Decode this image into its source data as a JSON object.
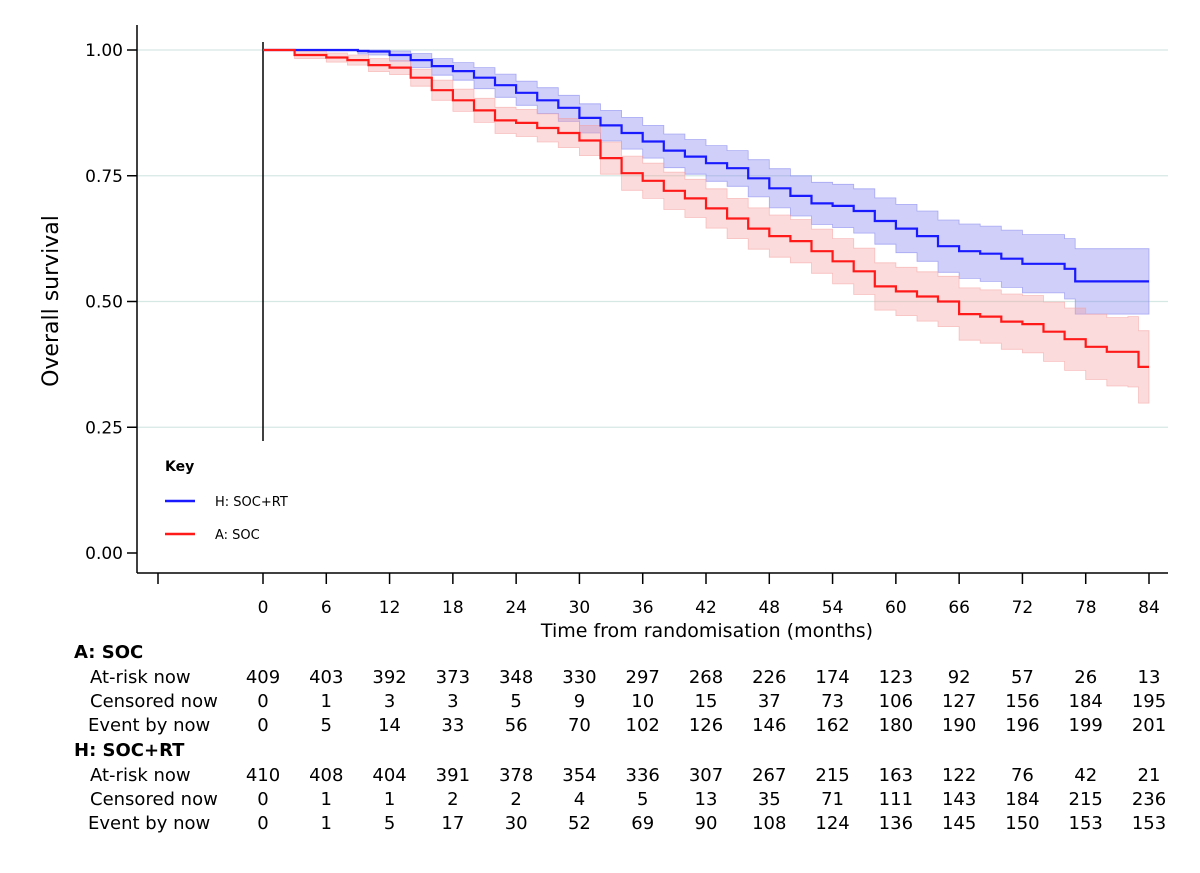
{
  "chart_data": {
    "type": "line",
    "ylabel": "Overall survival",
    "xlabel": "Time from randomisation (months)",
    "ylim": [
      0,
      1
    ],
    "xlim": [
      0,
      84
    ],
    "y_ticks": [
      "0.00",
      "0.25",
      "0.50",
      "0.75",
      "1.00"
    ],
    "y_tick_values": [
      0,
      0.25,
      0.5,
      0.75,
      1.0
    ],
    "x_ticks": [
      "0",
      "6",
      "12",
      "18",
      "24",
      "30",
      "36",
      "42",
      "48",
      "54",
      "60",
      "66",
      "72",
      "78",
      "84"
    ],
    "x_tick_values": [
      0,
      6,
      12,
      18,
      24,
      30,
      36,
      42,
      48,
      54,
      60,
      66,
      72,
      78,
      84
    ],
    "grid": "horizontal",
    "legend": {
      "title": "Key",
      "position": "bottom-left",
      "entries": [
        {
          "label": "H: SOC+RT",
          "color": "#1a1aff"
        },
        {
          "label": "A: SOC",
          "color": "#ff1a1a"
        }
      ]
    },
    "series": [
      {
        "name": "H: SOC+RT",
        "color": "#1a1aff",
        "band_color": "#8080ee",
        "x": [
          0,
          3,
          6,
          9,
          10,
          12,
          14,
          16,
          18,
          20,
          22,
          24,
          26,
          28,
          30,
          32,
          34,
          36,
          38,
          40,
          42,
          44,
          46,
          48,
          50,
          52,
          54,
          56,
          58,
          60,
          62,
          64,
          66,
          68,
          70,
          72,
          74,
          76,
          77,
          80,
          84
        ],
        "y": [
          1.0,
          1.0,
          1.0,
          0.998,
          0.997,
          0.99,
          0.98,
          0.968,
          0.958,
          0.945,
          0.93,
          0.915,
          0.9,
          0.885,
          0.865,
          0.85,
          0.835,
          0.818,
          0.8,
          0.788,
          0.775,
          0.765,
          0.745,
          0.725,
          0.71,
          0.695,
          0.69,
          0.68,
          0.66,
          0.645,
          0.63,
          0.61,
          0.6,
          0.595,
          0.585,
          0.575,
          0.575,
          0.565,
          0.54,
          0.54,
          0.54
        ],
        "upper": [
          1.0,
          1.0,
          1.0,
          1.0,
          1.0,
          0.998,
          0.993,
          0.983,
          0.975,
          0.965,
          0.952,
          0.938,
          0.925,
          0.91,
          0.893,
          0.88,
          0.866,
          0.85,
          0.833,
          0.822,
          0.81,
          0.8,
          0.782,
          0.764,
          0.75,
          0.737,
          0.733,
          0.724,
          0.706,
          0.693,
          0.68,
          0.662,
          0.654,
          0.65,
          0.642,
          0.633,
          0.633,
          0.625,
          0.605,
          0.605,
          0.605
        ],
        "lower": [
          1.0,
          1.0,
          0.998,
          0.992,
          0.99,
          0.978,
          0.965,
          0.95,
          0.94,
          0.923,
          0.906,
          0.89,
          0.874,
          0.858,
          0.835,
          0.819,
          0.803,
          0.785,
          0.766,
          0.753,
          0.739,
          0.729,
          0.708,
          0.686,
          0.67,
          0.653,
          0.647,
          0.636,
          0.614,
          0.597,
          0.58,
          0.558,
          0.546,
          0.54,
          0.528,
          0.517,
          0.517,
          0.505,
          0.475,
          0.475,
          0.475
        ]
      },
      {
        "name": "A: SOC",
        "color": "#ff1a1a",
        "band_color": "#f5a0a0",
        "x": [
          0,
          3,
          6,
          8,
          10,
          12,
          14,
          16,
          18,
          20,
          22,
          24,
          26,
          28,
          30,
          32,
          34,
          36,
          38,
          40,
          42,
          44,
          46,
          48,
          50,
          52,
          54,
          56,
          58,
          60,
          62,
          64,
          66,
          68,
          70,
          72,
          74,
          76,
          78,
          80,
          82,
          83,
          84
        ],
        "y": [
          1.0,
          0.99,
          0.985,
          0.98,
          0.97,
          0.965,
          0.945,
          0.92,
          0.9,
          0.88,
          0.86,
          0.855,
          0.845,
          0.835,
          0.82,
          0.785,
          0.755,
          0.74,
          0.72,
          0.705,
          0.685,
          0.665,
          0.645,
          0.63,
          0.62,
          0.6,
          0.58,
          0.56,
          0.53,
          0.52,
          0.51,
          0.5,
          0.475,
          0.47,
          0.46,
          0.455,
          0.44,
          0.425,
          0.41,
          0.4,
          0.4,
          0.37,
          0.37
        ],
        "upper": [
          1.0,
          0.997,
          0.994,
          0.99,
          0.983,
          0.979,
          0.962,
          0.94,
          0.922,
          0.904,
          0.886,
          0.882,
          0.873,
          0.864,
          0.85,
          0.817,
          0.789,
          0.775,
          0.757,
          0.743,
          0.724,
          0.705,
          0.686,
          0.672,
          0.663,
          0.644,
          0.625,
          0.606,
          0.577,
          0.568,
          0.559,
          0.55,
          0.527,
          0.523,
          0.515,
          0.512,
          0.499,
          0.487,
          0.475,
          0.468,
          0.47,
          0.442,
          0.442
        ],
        "lower": [
          1.0,
          0.983,
          0.976,
          0.97,
          0.957,
          0.951,
          0.928,
          0.9,
          0.878,
          0.856,
          0.834,
          0.828,
          0.817,
          0.806,
          0.79,
          0.753,
          0.721,
          0.705,
          0.683,
          0.667,
          0.646,
          0.625,
          0.604,
          0.588,
          0.577,
          0.556,
          0.535,
          0.514,
          0.483,
          0.472,
          0.461,
          0.45,
          0.423,
          0.417,
          0.405,
          0.398,
          0.381,
          0.363,
          0.345,
          0.332,
          0.33,
          0.298,
          0.298
        ]
      }
    ]
  },
  "risk_table": {
    "time_points": [
      "0",
      "6",
      "12",
      "18",
      "24",
      "30",
      "36",
      "42",
      "48",
      "54",
      "60",
      "66",
      "72",
      "78",
      "84"
    ],
    "groups": [
      {
        "title": "A: SOC",
        "rows": [
          {
            "label": "At-risk now",
            "values": [
              "409",
              "403",
              "392",
              "373",
              "348",
              "330",
              "297",
              "268",
              "226",
              "174",
              "123",
              "92",
              "57",
              "26",
              "13"
            ]
          },
          {
            "label": "Censored now",
            "values": [
              "0",
              "1",
              "3",
              "3",
              "5",
              "9",
              "10",
              "15",
              "37",
              "73",
              "106",
              "127",
              "156",
              "184",
              "195"
            ]
          },
          {
            "label": "Event by now",
            "values": [
              "0",
              "5",
              "14",
              "33",
              "56",
              "70",
              "102",
              "126",
              "146",
              "162",
              "180",
              "190",
              "196",
              "199",
              "201"
            ]
          }
        ]
      },
      {
        "title": "H: SOC+RT",
        "rows": [
          {
            "label": "At-risk now",
            "values": [
              "410",
              "408",
              "404",
              "391",
              "378",
              "354",
              "336",
              "307",
              "267",
              "215",
              "163",
              "122",
              "76",
              "42",
              "21"
            ]
          },
          {
            "label": "Censored now",
            "values": [
              "0",
              "1",
              "1",
              "2",
              "2",
              "4",
              "5",
              "13",
              "35",
              "71",
              "111",
              "143",
              "184",
              "215",
              "236"
            ]
          },
          {
            "label": "Event by now",
            "values": [
              "0",
              "1",
              "5",
              "17",
              "30",
              "52",
              "69",
              "90",
              "108",
              "124",
              "136",
              "145",
              "150",
              "153",
              "153"
            ]
          }
        ]
      }
    ]
  }
}
